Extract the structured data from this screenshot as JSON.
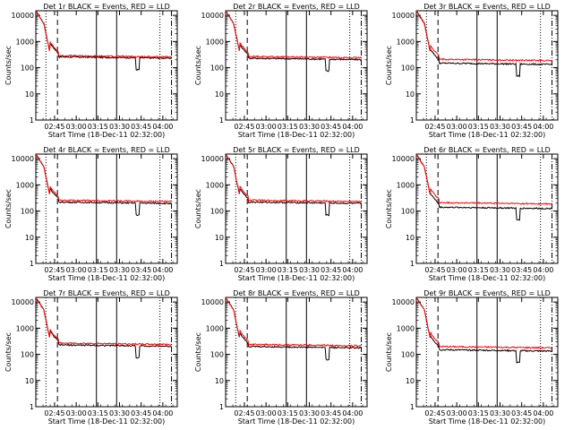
{
  "chart_data": [
    {
      "type": "line",
      "title": "Det 1r BLACK = Events, RED = LLD",
      "detector": "1r",
      "ylabel": "Counts/sec",
      "xlabel": "Start Time (18-Dec-11 02:32:00)",
      "x_tick_labels": [
        "02:45",
        "03:00",
        "03:15",
        "03:30",
        "03:45",
        "04:00"
      ],
      "y_tick_labels": [
        "1",
        "10",
        "100",
        "1000",
        "10000"
      ],
      "ylim": [
        1,
        15000
      ],
      "series": [
        {
          "name": "Events",
          "color": "#000000",
          "start": 15000,
          "plateau": 260
        },
        {
          "name": "LLD",
          "color": "#ff0000",
          "start": 15000,
          "plateau": 290
        }
      ],
      "vlines": [
        {
          "time": "02:39",
          "style": "dotted"
        },
        {
          "time": "02:47",
          "style": "dashed"
        },
        {
          "time": "03:14",
          "style": "solid"
        },
        {
          "time": "03:28",
          "style": "solid"
        },
        {
          "time": "03:58",
          "style": "dotted"
        },
        {
          "time": "04:06",
          "style": "dashdot"
        }
      ]
    },
    {
      "type": "line",
      "title": "Det 2r BLACK = Events, RED = LLD",
      "detector": "2r",
      "ylabel": "Counts/sec",
      "xlabel": "Start Time (18-Dec-11 02:32:00)",
      "x_tick_labels": [
        "02:45",
        "03:00",
        "03:15",
        "03:30",
        "03:45",
        "04:00"
      ],
      "y_tick_labels": [
        "1",
        "10",
        "100",
        "1000",
        "10000"
      ],
      "ylim": [
        1,
        15000
      ],
      "series": [
        {
          "name": "Events",
          "color": "#000000",
          "start": 15000,
          "plateau": 230
        },
        {
          "name": "LLD",
          "color": "#ff0000",
          "start": 15000,
          "plateau": 270
        }
      ],
      "vlines": [
        {
          "time": "02:39",
          "style": "dotted"
        },
        {
          "time": "02:47",
          "style": "dashed"
        },
        {
          "time": "03:14",
          "style": "solid"
        },
        {
          "time": "03:28",
          "style": "solid"
        },
        {
          "time": "03:58",
          "style": "dotted"
        },
        {
          "time": "04:06",
          "style": "dashdot"
        }
      ]
    },
    {
      "type": "line",
      "title": "Det 3r BLACK = Events, RED = LLD",
      "detector": "3r",
      "ylabel": "Counts/sec",
      "xlabel": "Start Time (18-Dec-11 02:32:00)",
      "x_tick_labels": [
        "02:45",
        "03:00",
        "03:15",
        "03:30",
        "03:45",
        "04:00"
      ],
      "y_tick_labels": [
        "1",
        "10",
        "100",
        "1000",
        "10000"
      ],
      "ylim": [
        1,
        15000
      ],
      "series": [
        {
          "name": "Events",
          "color": "#000000",
          "start": 15000,
          "plateau": 150
        },
        {
          "name": "LLD",
          "color": "#ff0000",
          "start": 15000,
          "plateau": 210
        }
      ],
      "vlines": [
        {
          "time": "02:39",
          "style": "dotted"
        },
        {
          "time": "02:47",
          "style": "dashed"
        },
        {
          "time": "03:14",
          "style": "solid"
        },
        {
          "time": "03:28",
          "style": "solid"
        },
        {
          "time": "03:58",
          "style": "dotted"
        },
        {
          "time": "04:06",
          "style": "dashdot"
        }
      ]
    },
    {
      "type": "line",
      "title": "Det 4r BLACK = Events, RED = LLD",
      "detector": "4r",
      "ylabel": "Counts/sec",
      "xlabel": "Start Time (18-Dec-11 02:32:00)",
      "x_tick_labels": [
        "02:45",
        "03:00",
        "03:15",
        "03:30",
        "03:45",
        "04:00"
      ],
      "y_tick_labels": [
        "1",
        "10",
        "100",
        "1000",
        "10000"
      ],
      "ylim": [
        1,
        15000
      ],
      "series": [
        {
          "name": "Events",
          "color": "#000000",
          "start": 15000,
          "plateau": 220
        },
        {
          "name": "LLD",
          "color": "#ff0000",
          "start": 15000,
          "plateau": 260
        }
      ],
      "vlines": [
        {
          "time": "02:39",
          "style": "dotted"
        },
        {
          "time": "02:47",
          "style": "dashed"
        },
        {
          "time": "03:14",
          "style": "solid"
        },
        {
          "time": "03:28",
          "style": "solid"
        },
        {
          "time": "03:58",
          "style": "dotted"
        },
        {
          "time": "04:06",
          "style": "dashdot"
        }
      ]
    },
    {
      "type": "line",
      "title": "Det 5r BLACK = Events, RED = LLD",
      "detector": "5r",
      "ylabel": "Counts/sec",
      "xlabel": "Start Time (18-Dec-11 02:32:00)",
      "x_tick_labels": [
        "02:45",
        "03:00",
        "03:15",
        "03:30",
        "03:45",
        "04:00"
      ],
      "y_tick_labels": [
        "1",
        "10",
        "100",
        "1000",
        "10000"
      ],
      "ylim": [
        1,
        15000
      ],
      "series": [
        {
          "name": "Events",
          "color": "#000000",
          "start": 15000,
          "plateau": 220
        },
        {
          "name": "LLD",
          "color": "#ff0000",
          "start": 15000,
          "plateau": 260
        }
      ],
      "vlines": [
        {
          "time": "02:39",
          "style": "dotted"
        },
        {
          "time": "02:47",
          "style": "dashed"
        },
        {
          "time": "03:14",
          "style": "solid"
        },
        {
          "time": "03:28",
          "style": "solid"
        },
        {
          "time": "03:58",
          "style": "dotted"
        },
        {
          "time": "04:06",
          "style": "dashdot"
        }
      ]
    },
    {
      "type": "line",
      "title": "Det 6r BLACK = Events, RED = LLD",
      "detector": "6r",
      "ylabel": "Counts/sec",
      "xlabel": "Start Time (18-Dec-11 02:32:00)",
      "x_tick_labels": [
        "02:45",
        "03:00",
        "03:15",
        "03:30",
        "03:45",
        "04:00"
      ],
      "y_tick_labels": [
        "1",
        "10",
        "100",
        "1000",
        "10000"
      ],
      "ylim": [
        1,
        15000
      ],
      "series": [
        {
          "name": "Events",
          "color": "#000000",
          "start": 15000,
          "plateau": 140
        },
        {
          "name": "LLD",
          "color": "#ff0000",
          "start": 15000,
          "plateau": 210
        }
      ],
      "vlines": [
        {
          "time": "02:39",
          "style": "dotted"
        },
        {
          "time": "02:47",
          "style": "dashed"
        },
        {
          "time": "03:14",
          "style": "solid"
        },
        {
          "time": "03:28",
          "style": "solid"
        },
        {
          "time": "03:58",
          "style": "dotted"
        },
        {
          "time": "04:06",
          "style": "dashdot"
        }
      ]
    },
    {
      "type": "line",
      "title": "Det 7r BLACK = Events, RED = LLD",
      "detector": "7r",
      "ylabel": "Counts/sec",
      "xlabel": "Start Time (18-Dec-11 02:32:00)",
      "x_tick_labels": [
        "02:45",
        "03:00",
        "03:15",
        "03:30",
        "03:45",
        "04:00"
      ],
      "y_tick_labels": [
        "1",
        "10",
        "100",
        "1000",
        "10000"
      ],
      "ylim": [
        1,
        15000
      ],
      "series": [
        {
          "name": "Events",
          "color": "#000000",
          "start": 15000,
          "plateau": 230
        },
        {
          "name": "LLD",
          "color": "#ff0000",
          "start": 15000,
          "plateau": 270
        }
      ],
      "vlines": [
        {
          "time": "02:39",
          "style": "dotted"
        },
        {
          "time": "02:47",
          "style": "dashed"
        },
        {
          "time": "03:14",
          "style": "solid"
        },
        {
          "time": "03:28",
          "style": "solid"
        },
        {
          "time": "03:58",
          "style": "dotted"
        },
        {
          "time": "04:06",
          "style": "dashdot"
        }
      ]
    },
    {
      "type": "line",
      "title": "Det 8r BLACK = Events, RED = LLD",
      "detector": "8r",
      "ylabel": "Counts/sec",
      "xlabel": "Start Time (18-Dec-11 02:32:00)",
      "x_tick_labels": [
        "02:45",
        "03:00",
        "03:15",
        "03:30",
        "03:45",
        "04:00"
      ],
      "y_tick_labels": [
        "1",
        "10",
        "100",
        "1000",
        "10000"
      ],
      "ylim": [
        1,
        15000
      ],
      "series": [
        {
          "name": "Events",
          "color": "#000000",
          "start": 15000,
          "plateau": 200
        },
        {
          "name": "LLD",
          "color": "#ff0000",
          "start": 15000,
          "plateau": 240
        }
      ],
      "vlines": [
        {
          "time": "02:39",
          "style": "dotted"
        },
        {
          "time": "02:47",
          "style": "dashed"
        },
        {
          "time": "03:14",
          "style": "solid"
        },
        {
          "time": "03:28",
          "style": "solid"
        },
        {
          "time": "03:58",
          "style": "dotted"
        },
        {
          "time": "04:06",
          "style": "dashdot"
        }
      ]
    },
    {
      "type": "line",
      "title": "Det 9r BLACK = Events, RED = LLD",
      "detector": "9r",
      "ylabel": "Counts/sec",
      "xlabel": "Start Time (18-Dec-11 02:32:00)",
      "x_tick_labels": [
        "02:45",
        "03:00",
        "03:15",
        "03:30",
        "03:45",
        "04:00"
      ],
      "y_tick_labels": [
        "1",
        "10",
        "100",
        "1000",
        "10000"
      ],
      "ylim": [
        1,
        15000
      ],
      "series": [
        {
          "name": "Events",
          "color": "#000000",
          "start": 15000,
          "plateau": 150
        },
        {
          "name": "LLD",
          "color": "#ff0000",
          "start": 15000,
          "plateau": 200
        }
      ],
      "vlines": [
        {
          "time": "02:39",
          "style": "dotted"
        },
        {
          "time": "02:47",
          "style": "dashed"
        },
        {
          "time": "03:14",
          "style": "solid"
        },
        {
          "time": "03:28",
          "style": "solid"
        },
        {
          "time": "03:58",
          "style": "dotted"
        },
        {
          "time": "04:06",
          "style": "dashdot"
        }
      ]
    }
  ]
}
